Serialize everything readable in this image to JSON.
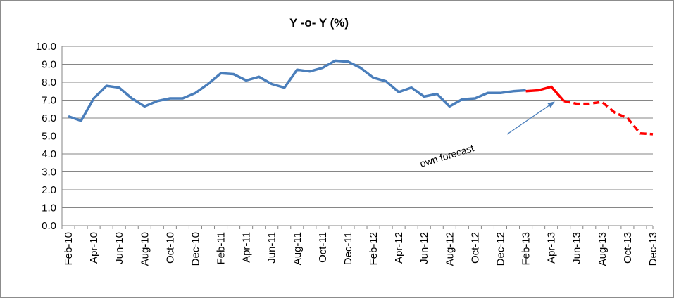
{
  "chart_data": {
    "type": "line",
    "title": "Y -o- Y (%)",
    "xlabel": "",
    "ylabel": "",
    "ylim": [
      0,
      10
    ],
    "y_ticks": [
      "10.0",
      "9.0",
      "8.0",
      "7.0",
      "6.0",
      "5.0",
      "4.0",
      "3.0",
      "2.0",
      "1.0",
      "0.0"
    ],
    "grid": true,
    "legend": "none",
    "x": [
      "Feb-10",
      "Mar-10",
      "Apr-10",
      "May-10",
      "Jun-10",
      "Jul-10",
      "Aug-10",
      "Sep-10",
      "Oct-10",
      "Nov-10",
      "Dec-10",
      "Jan-11",
      "Feb-11",
      "Mar-11",
      "Apr-11",
      "May-11",
      "Jun-11",
      "Jul-11",
      "Aug-11",
      "Sep-11",
      "Oct-11",
      "Nov-11",
      "Dec-11",
      "Jan-12",
      "Feb-12",
      "Mar-12",
      "Apr-12",
      "May-12",
      "Jun-12",
      "Jul-12",
      "Aug-12",
      "Sep-12",
      "Oct-12",
      "Nov-12",
      "Dec-12",
      "Jan-13",
      "Feb-13",
      "Mar-13",
      "Apr-13",
      "May-13",
      "Jun-13",
      "Jul-13",
      "Aug-13",
      "Sep-13",
      "Oct-13",
      "Nov-13",
      "Dec-13"
    ],
    "x_tick_labels": [
      "Feb-10",
      "Apr-10",
      "Jun-10",
      "Aug-10",
      "Oct-10",
      "Dec-10",
      "Feb-11",
      "Apr-11",
      "Jun-11",
      "Aug-11",
      "Oct-11",
      "Dec-11",
      "Feb-12",
      "Apr-12",
      "Jun-12",
      "Aug-12",
      "Oct-12",
      "Dec-12",
      "Feb-13",
      "Apr-13",
      "Jun-13",
      "Aug-13",
      "Oct-13",
      "Dec-13"
    ],
    "series": [
      {
        "style": "solid",
        "color": "#4a7ebb",
        "values": [
          6.1,
          5.85,
          7.1,
          7.8,
          7.7,
          7.1,
          6.65,
          6.95,
          7.1,
          7.1,
          7.4,
          7.9,
          8.5,
          8.45,
          8.1,
          8.3,
          7.9,
          7.7,
          8.7,
          8.6,
          8.8,
          9.2,
          9.15,
          8.8,
          8.25,
          8.05,
          7.45,
          7.7,
          7.2,
          7.35,
          6.65,
          7.05,
          7.1,
          7.4,
          7.4,
          7.5,
          7.55,
          null,
          null,
          null,
          null,
          null,
          null,
          null,
          null,
          null,
          null
        ]
      },
      {
        "style": "solid",
        "color": "#ff0000",
        "values": [
          null,
          null,
          null,
          null,
          null,
          null,
          null,
          null,
          null,
          null,
          null,
          null,
          null,
          null,
          null,
          null,
          null,
          null,
          null,
          null,
          null,
          null,
          null,
          null,
          null,
          null,
          null,
          null,
          null,
          null,
          null,
          null,
          null,
          null,
          null,
          null,
          7.5,
          7.55,
          7.75,
          6.95,
          null,
          null,
          null,
          null,
          null,
          null,
          null
        ]
      },
      {
        "style": "dashed",
        "color": "#ff0000",
        "values": [
          null,
          null,
          null,
          null,
          null,
          null,
          null,
          null,
          null,
          null,
          null,
          null,
          null,
          null,
          null,
          null,
          null,
          null,
          null,
          null,
          null,
          null,
          null,
          null,
          null,
          null,
          null,
          null,
          null,
          null,
          null,
          null,
          null,
          null,
          null,
          null,
          null,
          null,
          null,
          6.95,
          6.8,
          6.8,
          6.9,
          6.3,
          6.0,
          5.15,
          5.1
        ]
      }
    ],
    "annotations": [
      {
        "text": "own forecast",
        "points_to": "May-13",
        "color": "#4a7ebb"
      }
    ]
  }
}
